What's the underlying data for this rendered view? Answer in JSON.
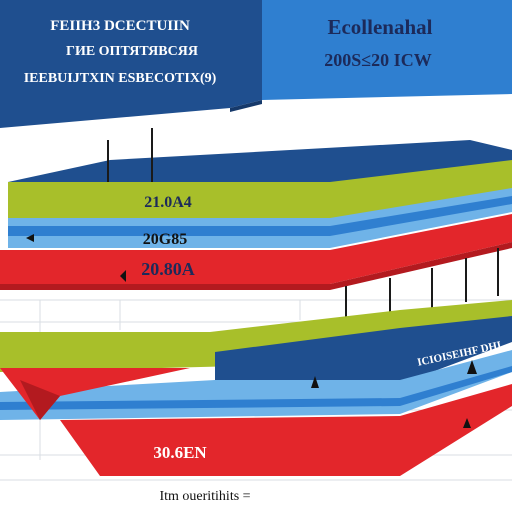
{
  "colors": {
    "navy": "#1f4f8f",
    "blue": "#2f7fd0",
    "light_blue": "#6fb3e8",
    "green": "#a8bf2a",
    "red": "#e3262b",
    "grid": "#d9dde3"
  },
  "header": {
    "left_lines": [
      "FEIIH3 DCECTUIIN",
      "ГИЕ ОПТЯТЯВСЯЯ",
      "IEEBUIJTXIN ESBECOTIX(9)"
    ],
    "right_title": "Ecollenahal",
    "right_subtitle": "200S≤20 ICW"
  },
  "chart_data": {
    "type": "bar",
    "title": "",
    "xlabel": "",
    "ylabel": "",
    "upper_labels": [
      "21.0A4",
      "20G85",
      "20.80A"
    ],
    "lower_labels": [
      "ICIOISEIHF DHI",
      "30.6EN"
    ],
    "legend_text": "Itm oueritihits ="
  }
}
